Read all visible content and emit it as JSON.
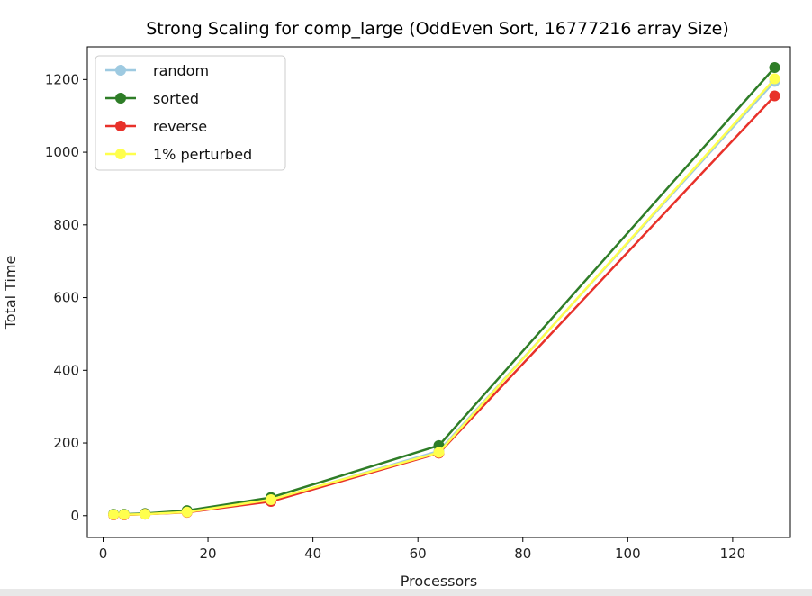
{
  "chart_data": {
    "type": "line",
    "title": "Strong Scaling for comp_large (OddEven Sort, 16777216 array Size)",
    "xlabel": "Processors",
    "ylabel": "Total Time",
    "xlim": [
      -3,
      131
    ],
    "ylim": [
      -60,
      1290
    ],
    "xticks": [
      0,
      20,
      40,
      60,
      80,
      100,
      120
    ],
    "yticks": [
      0,
      200,
      400,
      600,
      800,
      1000,
      1200
    ],
    "legend_position": "top-left",
    "x": [
      2,
      4,
      8,
      16,
      32,
      64,
      128
    ],
    "series": [
      {
        "name": "random",
        "color": "#9ecae1",
        "values": [
          3,
          3,
          4,
          10,
          42,
          178,
          1195
        ]
      },
      {
        "name": "sorted",
        "color": "#2e7d27",
        "values": [
          4,
          4,
          6,
          14,
          50,
          193,
          1233
        ]
      },
      {
        "name": "reverse",
        "color": "#e8312a",
        "values": [
          2,
          2,
          4,
          9,
          39,
          172,
          1155
        ]
      },
      {
        "name": "1% perturbed",
        "color": "#ffff4d",
        "values": [
          3,
          3,
          4,
          10,
          44,
          174,
          1202
        ]
      }
    ]
  }
}
